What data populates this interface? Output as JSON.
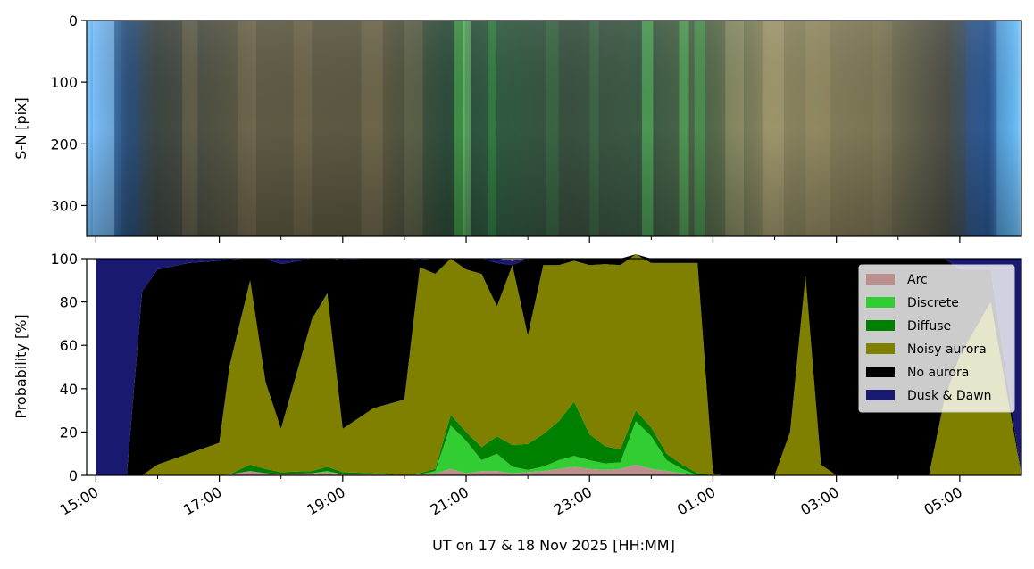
{
  "chart_data": [
    {
      "type": "heatmap",
      "ylabel": "S-N [pix]",
      "yticks": [
        "0",
        "100",
        "200",
        "300"
      ],
      "ylim": [
        350,
        0
      ],
      "xlim_hours_since_1500": [
        -0.15,
        15.0
      ]
    },
    {
      "type": "area",
      "ylabel": "Probability [%]",
      "xlabel": "UT on 17 & 18 Nov 2025 [HH:MM]",
      "yticks": [
        "0",
        "20",
        "40",
        "60",
        "80",
        "100"
      ],
      "ylim": [
        0,
        100
      ],
      "xticks": [
        "15:00",
        "17:00",
        "19:00",
        "21:00",
        "23:00",
        "01:00",
        "03:00",
        "05:00"
      ],
      "legend_position": "upper right",
      "x": [
        "15:00",
        "15:30",
        "15:45",
        "16:00",
        "16:30",
        "17:00",
        "17:10",
        "17:30",
        "17:45",
        "18:00",
        "18:30",
        "18:45",
        "19:00",
        "19:30",
        "20:00",
        "20:15",
        "20:30",
        "20:45",
        "21:00",
        "21:15",
        "21:30",
        "21:45",
        "22:00",
        "22:15",
        "22:30",
        "22:45",
        "23:00",
        "23:15",
        "23:30",
        "23:45",
        "00:00",
        "00:15",
        "00:30",
        "00:45",
        "01:00",
        "01:10",
        "01:30",
        "02:00",
        "02:15",
        "02:30",
        "02:45",
        "03:00",
        "03:30",
        "04:00",
        "04:30",
        "04:45",
        "05:00",
        "05:30",
        "06:00"
      ],
      "series": [
        {
          "name": "Arc",
          "color": "#bc8f8f",
          "values": [
            0,
            0,
            0,
            0,
            0,
            0,
            0.5,
            2,
            1,
            0.5,
            1,
            1.5,
            0.5,
            0.5,
            0,
            0.5,
            1,
            3,
            1,
            2,
            2,
            1,
            1.5,
            2,
            3,
            4,
            3,
            2.5,
            3,
            5,
            3,
            2,
            1,
            0,
            0,
            0,
            0,
            0,
            0,
            0,
            0,
            0,
            0,
            0,
            0,
            0,
            0,
            0,
            0
          ]
        },
        {
          "name": "Discrete",
          "color": "#32cd32",
          "values": [
            0,
            0,
            0,
            0,
            0,
            0,
            0,
            0,
            0,
            0,
            0,
            0.5,
            0,
            0,
            0,
            0,
            1,
            20,
            15,
            5,
            8,
            3,
            1,
            2,
            4,
            5,
            4,
            3,
            3,
            20,
            15,
            5,
            2,
            0,
            0,
            0,
            0,
            0,
            0,
            0,
            0,
            0,
            0,
            0,
            0,
            0,
            0,
            0,
            0
          ]
        },
        {
          "name": "Diffuse",
          "color": "#008000",
          "values": [
            0,
            0,
            0,
            0,
            0,
            0,
            0,
            3,
            2,
            1,
            1,
            2,
            1,
            0.5,
            0,
            0.5,
            1,
            5,
            4,
            6,
            8,
            10,
            12,
            15,
            18,
            25,
            12,
            8,
            6,
            5,
            4,
            3,
            2,
            1,
            0,
            0,
            0,
            0,
            0,
            0,
            0,
            0,
            0,
            0,
            0,
            0,
            0,
            0,
            0
          ]
        },
        {
          "name": "Noisy aurora",
          "color": "#808000",
          "values": [
            0,
            0,
            0,
            5,
            10,
            15,
            50,
            85,
            40,
            20,
            70,
            80,
            20,
            30,
            35,
            95,
            90,
            72,
            75,
            80,
            60,
            83,
            50,
            78,
            72,
            65,
            78,
            84,
            85,
            72,
            76,
            88,
            93,
            97,
            1,
            0,
            0,
            0,
            20,
            92,
            5,
            0,
            0,
            0,
            0,
            35,
            55,
            80,
            0
          ]
        },
        {
          "name": "No aurora",
          "color": "#000000",
          "values": [
            0,
            0,
            85,
            90,
            88,
            84,
            49,
            10,
            57,
            76,
            28,
            16,
            78,
            69,
            65,
            3.5,
            7,
            0,
            5,
            7,
            20,
            0,
            35.5,
            3,
            3,
            1,
            3,
            2.5,
            3,
            0,
            2,
            2,
            2,
            2,
            99,
            100,
            100,
            100,
            80,
            8,
            95,
            100,
            100,
            100,
            100,
            65,
            40,
            15,
            0
          ]
        },
        {
          "name": "Dusk & Dawn",
          "color": "#191970",
          "values": [
            100,
            100,
            15,
            5,
            2,
            1,
            0.5,
            0,
            0,
            2.5,
            0,
            0,
            0.5,
            0,
            0,
            0.5,
            0,
            0,
            0,
            0,
            2,
            2,
            0,
            0,
            0,
            0,
            0,
            0,
            0,
            0,
            0,
            0,
            0,
            0,
            0,
            0,
            0,
            0,
            0,
            0,
            0,
            0,
            0,
            0,
            0,
            0,
            5,
            5,
            100
          ]
        }
      ]
    }
  ]
}
